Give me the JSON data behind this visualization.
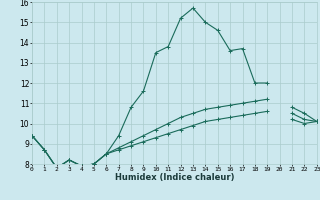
{
  "xlabel": "Humidex (Indice chaleur)",
  "bg_color": "#cce8ee",
  "grid_color": "#aacccc",
  "line_color": "#1a6b5a",
  "xlim": [
    0,
    23
  ],
  "ylim": [
    8,
    16
  ],
  "xticks": [
    0,
    1,
    2,
    3,
    4,
    5,
    6,
    7,
    8,
    9,
    10,
    11,
    12,
    13,
    14,
    15,
    16,
    17,
    18,
    19,
    20,
    21,
    22,
    23
  ],
  "yticks": [
    8,
    9,
    10,
    11,
    12,
    13,
    14,
    15,
    16
  ],
  "series": [
    {
      "x": [
        0,
        1,
        2,
        3,
        4,
        5,
        6,
        7,
        8,
        9,
        10,
        11,
        12,
        13,
        14,
        15,
        16,
        17,
        18,
        19,
        20,
        21,
        22,
        23
      ],
      "y": [
        9.4,
        8.7,
        7.8,
        8.2,
        7.9,
        8.0,
        8.5,
        9.4,
        10.8,
        11.6,
        13.5,
        13.8,
        15.2,
        15.7,
        15.0,
        14.6,
        13.6,
        13.7,
        12.0,
        12.0,
        null,
        10.5,
        10.2,
        10.1
      ]
    },
    {
      "x": [
        0,
        1,
        2,
        3,
        4,
        5,
        6,
        7,
        8,
        9,
        10,
        11,
        12,
        13,
        14,
        15,
        16,
        17,
        18,
        19,
        20,
        21,
        22,
        23
      ],
      "y": [
        9.4,
        8.7,
        7.8,
        8.2,
        7.9,
        8.0,
        8.5,
        8.8,
        9.1,
        9.4,
        9.7,
        10.0,
        10.3,
        10.5,
        10.7,
        10.8,
        10.9,
        11.0,
        11.1,
        11.2,
        null,
        10.8,
        10.5,
        10.1
      ]
    },
    {
      "x": [
        0,
        1,
        2,
        3,
        4,
        5,
        6,
        7,
        8,
        9,
        10,
        11,
        12,
        13,
        14,
        15,
        16,
        17,
        18,
        19,
        20,
        21,
        22,
        23
      ],
      "y": [
        9.4,
        8.7,
        7.8,
        8.2,
        7.9,
        8.0,
        8.5,
        8.7,
        8.9,
        9.1,
        9.3,
        9.5,
        9.7,
        9.9,
        10.1,
        10.2,
        10.3,
        10.4,
        10.5,
        10.6,
        null,
        10.2,
        10.0,
        10.1
      ]
    }
  ]
}
